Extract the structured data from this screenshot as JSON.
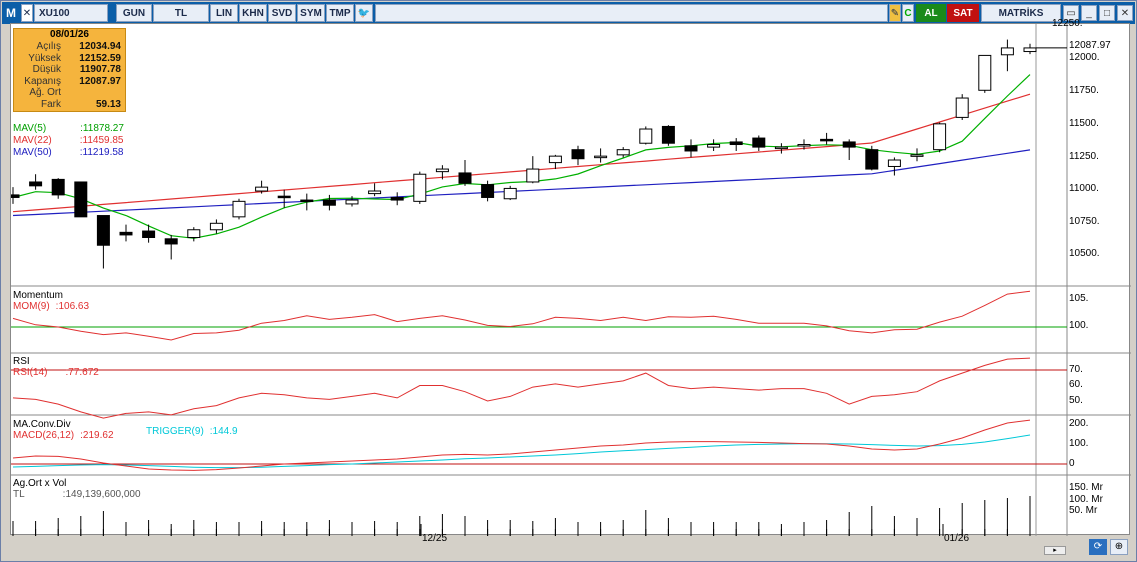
{
  "toolbar": {
    "symbol": "XU100",
    "period": "GUN",
    "currency": "TL",
    "scale": "LIN",
    "khn": "KHN",
    "svd": "SVD",
    "sym": "SYM",
    "tmp": "TMP",
    "buy": "AL",
    "sell": "SAT",
    "brand": "MATRİKS"
  },
  "info": {
    "date": "08/01/26",
    "rows": [
      {
        "k": "Açılış",
        "v": "12034.94"
      },
      {
        "k": "Yüksek",
        "v": "12152.59"
      },
      {
        "k": "Düşük",
        "v": "11907.78"
      },
      {
        "k": "Kapanış",
        "v": "12087.97"
      },
      {
        "k": "Ağ. Ort",
        "v": ""
      },
      {
        "k": "Fark",
        "v": "59.13"
      }
    ]
  },
  "indicators": {
    "mav5": {
      "label": "MAV(5)",
      "value": ":11878.27",
      "color": "#00b000"
    },
    "mav22": {
      "label": "MAV(22)",
      "value": ":11459.85",
      "color": "#e03030"
    },
    "mav50": {
      "label": "MAV(50)",
      "value": ":11219.58",
      "color": "#2020c0"
    }
  },
  "price_axis": {
    "ticks": [
      "12250.",
      "12000.",
      "11750.",
      "11500.",
      "11250.",
      "11000.",
      "10750.",
      "10500."
    ],
    "current": "12087.97"
  },
  "momentum": {
    "title": "Momentum",
    "label": "MOM(9)",
    "value": ":106.63",
    "ticks": [
      "105.",
      "100."
    ]
  },
  "rsi": {
    "title": "RSI",
    "label": "RSI(14)",
    "value": ":77.672",
    "ticks": [
      "70.",
      "60.",
      "50."
    ]
  },
  "macd": {
    "title": "MA.Conv.Div",
    "label": "MACD(26,12)",
    "value": ":219.62",
    "trigger_label": "TRIGGER(9)",
    "trigger_value": ":144.9",
    "ticks": [
      "200.",
      "100.",
      "0"
    ]
  },
  "volume": {
    "title": "Ag.Ort x Vol",
    "unit": "TL",
    "value": ":149,139,600,000",
    "ticks": [
      "150. Mr",
      "100. Mr",
      "50. Mr"
    ]
  },
  "time_axis": {
    "labels": [
      "12/25",
      "01/26"
    ]
  },
  "chart_data": {
    "type": "candlestick",
    "ohlc": [
      [
        10950,
        11010,
        10880,
        10930
      ],
      [
        11050,
        11110,
        10990,
        11020
      ],
      [
        11070,
        11080,
        10920,
        10950
      ],
      [
        11050,
        11050,
        10780,
        10780
      ],
      [
        10790,
        10790,
        10380,
        10560
      ],
      [
        10660,
        10720,
        10590,
        10640
      ],
      [
        10670,
        10720,
        10580,
        10620
      ],
      [
        10610,
        10640,
        10450,
        10570
      ],
      [
        10620,
        10700,
        10590,
        10680
      ],
      [
        10680,
        10760,
        10650,
        10730
      ],
      [
        10780,
        10920,
        10760,
        10900
      ],
      [
        10980,
        11060,
        10960,
        11010
      ],
      [
        10940,
        10990,
        10850,
        10930
      ],
      [
        10910,
        10960,
        10830,
        10900
      ],
      [
        10910,
        10950,
        10830,
        10870
      ],
      [
        10880,
        10940,
        10860,
        10910
      ],
      [
        10960,
        11040,
        10940,
        10980
      ],
      [
        10930,
        10970,
        10870,
        10910
      ],
      [
        10900,
        11130,
        10880,
        11110
      ],
      [
        11130,
        11180,
        11070,
        11150
      ],
      [
        11120,
        11220,
        11020,
        11040
      ],
      [
        11030,
        11060,
        10900,
        10930
      ],
      [
        10920,
        11020,
        10910,
        11000
      ],
      [
        11050,
        11250,
        11040,
        11150
      ],
      [
        11200,
        11260,
        11150,
        11250
      ],
      [
        11300,
        11330,
        11180,
        11230
      ],
      [
        11240,
        11310,
        11200,
        11250
      ],
      [
        11260,
        11320,
        11240,
        11300
      ],
      [
        11350,
        11480,
        11340,
        11460
      ],
      [
        11480,
        11490,
        11330,
        11350
      ],
      [
        11330,
        11380,
        11240,
        11290
      ],
      [
        11320,
        11380,
        11290,
        11340
      ],
      [
        11360,
        11390,
        11290,
        11340
      ],
      [
        11390,
        11410,
        11290,
        11320
      ],
      [
        11310,
        11350,
        11270,
        11320
      ],
      [
        11330,
        11380,
        11300,
        11340
      ],
      [
        11380,
        11430,
        11340,
        11370
      ],
      [
        11360,
        11380,
        11220,
        11320
      ],
      [
        11300,
        11330,
        11140,
        11150
      ],
      [
        11170,
        11240,
        11100,
        11220
      ],
      [
        11250,
        11310,
        11210,
        11260
      ],
      [
        11300,
        11510,
        11280,
        11500
      ],
      [
        11550,
        11730,
        11530,
        11700
      ],
      [
        11760,
        12030,
        11740,
        12030
      ],
      [
        12034.94,
        12152.59,
        11907.78,
        12087.97
      ],
      [
        12060,
        12120,
        12040,
        12087.97
      ]
    ]
  }
}
